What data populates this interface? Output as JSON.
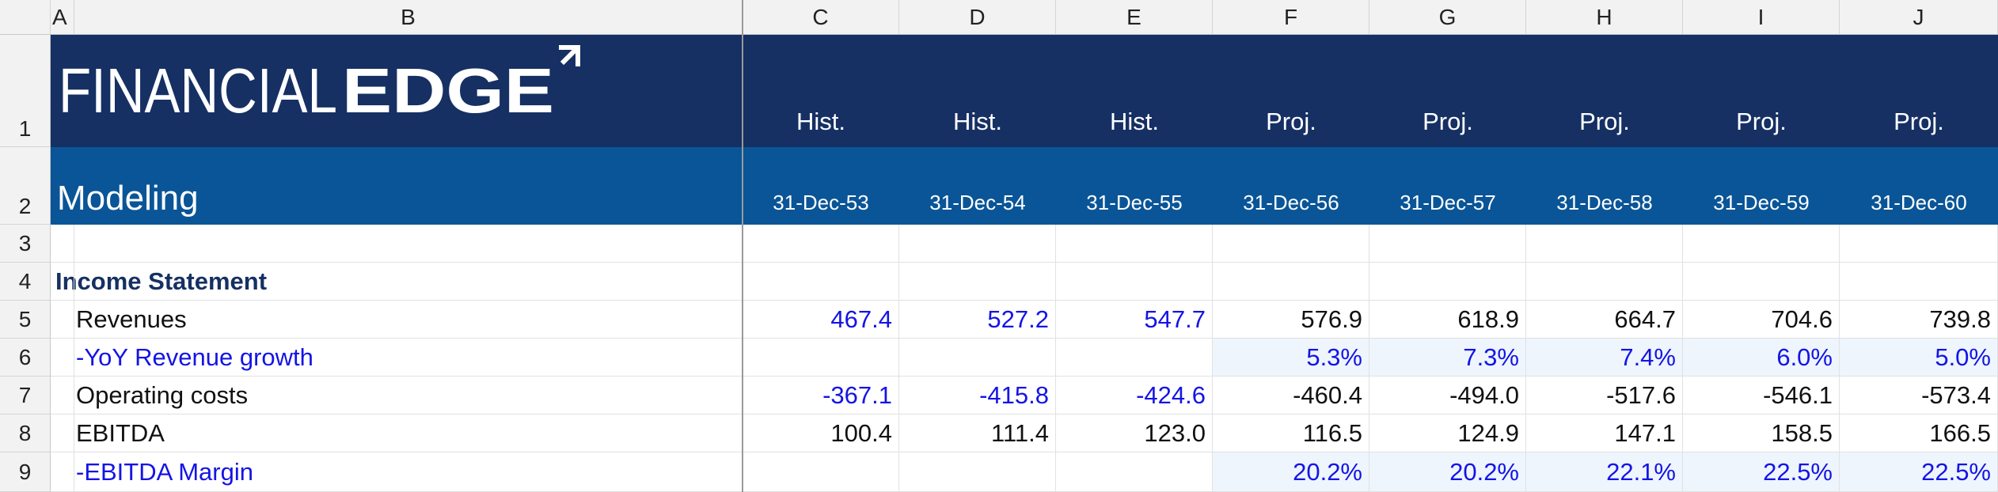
{
  "columns": [
    "A",
    "B",
    "C",
    "D",
    "E",
    "F",
    "G",
    "H",
    "I",
    "J"
  ],
  "rows": [
    "1",
    "2",
    "3",
    "4",
    "5",
    "6",
    "7",
    "8",
    "9"
  ],
  "logo": {
    "light": "FINANCIAL",
    "bold": "EDGE"
  },
  "subtitle": "Modeling",
  "period_types": [
    "Hist.",
    "Hist.",
    "Hist.",
    "Proj.",
    "Proj.",
    "Proj.",
    "Proj.",
    "Proj."
  ],
  "period_dates": [
    "31-Dec-53",
    "31-Dec-54",
    "31-Dec-55",
    "31-Dec-56",
    "31-Dec-57",
    "31-Dec-58",
    "31-Dec-59",
    "31-Dec-60"
  ],
  "section_title": "Income Statement",
  "line_items": [
    {
      "label": "Revenues",
      "values": [
        "467.4",
        "527.2",
        "547.7",
        "576.9",
        "618.9",
        "664.7",
        "704.6",
        "739.8"
      ]
    },
    {
      "label": "-YoY Revenue growth",
      "values": [
        "",
        "",
        "",
        "5.3%",
        "7.3%",
        "7.4%",
        "6.0%",
        "5.0%"
      ]
    },
    {
      "label": "Operating costs",
      "values": [
        "-367.1",
        "-415.8",
        "-424.6",
        "-460.4",
        "-494.0",
        "-517.6",
        "-546.1",
        "-573.4"
      ]
    },
    {
      "label": "EBITDA",
      "values": [
        "100.4",
        "111.4",
        "123.0",
        "116.5",
        "124.9",
        "147.1",
        "158.5",
        "166.5"
      ]
    },
    {
      "label": "-EBITDA Margin",
      "values": [
        "",
        "",
        "",
        "20.2%",
        "20.2%",
        "22.1%",
        "22.5%",
        "22.5%"
      ]
    }
  ],
  "colors": {
    "header_dark": "#163063",
    "header_mid": "#0a5597",
    "input_blue": "#1414e6",
    "pct_shade": "#eef5fd",
    "section_title": "#163063"
  }
}
